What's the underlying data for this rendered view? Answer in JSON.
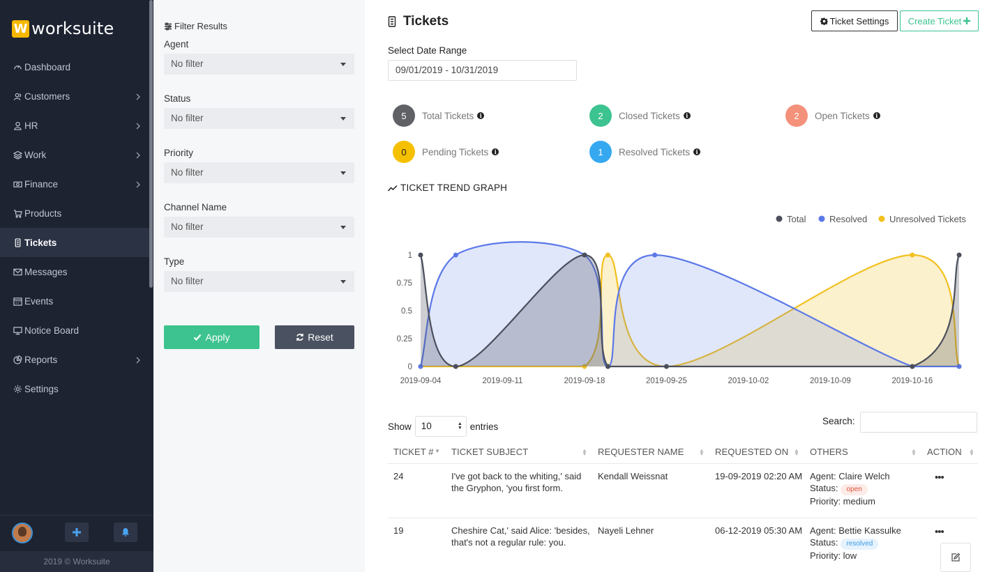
{
  "brand": {
    "logo_letter": "W",
    "name": "worksuite"
  },
  "sidebar": {
    "items": [
      {
        "label": "Dashboard",
        "icon": "dashboard-icon",
        "has_children": false,
        "active": false
      },
      {
        "label": "Customers",
        "icon": "users-icon",
        "has_children": true,
        "active": false
      },
      {
        "label": "HR",
        "icon": "user-icon",
        "has_children": true,
        "active": false
      },
      {
        "label": "Work",
        "icon": "layers-icon",
        "has_children": true,
        "active": false
      },
      {
        "label": "Finance",
        "icon": "money-icon",
        "has_children": true,
        "active": false
      },
      {
        "label": "Products",
        "icon": "cart-icon",
        "has_children": false,
        "active": false
      },
      {
        "label": "Tickets",
        "icon": "ticket-icon",
        "has_children": false,
        "active": true
      },
      {
        "label": "Messages",
        "icon": "envelope-icon",
        "has_children": false,
        "active": false
      },
      {
        "label": "Events",
        "icon": "calendar-icon",
        "has_children": false,
        "active": false
      },
      {
        "label": "Notice Board",
        "icon": "display-icon",
        "has_children": false,
        "active": false
      },
      {
        "label": "Reports",
        "icon": "pie-chart-icon",
        "has_children": true,
        "active": false
      },
      {
        "label": "Settings",
        "icon": "gear-icon",
        "has_children": false,
        "active": false
      }
    ],
    "footer": "2019 © Worksuite"
  },
  "filters": {
    "title": "Filter Results",
    "fields": [
      {
        "label": "Agent",
        "value": "No filter"
      },
      {
        "label": "Status",
        "value": "No filter"
      },
      {
        "label": "Priority",
        "value": "No filter"
      },
      {
        "label": "Channel Name",
        "value": "No filter"
      },
      {
        "label": "Type",
        "value": "No filter"
      }
    ],
    "apply_label": "Apply",
    "reset_label": "Reset"
  },
  "header": {
    "title": "Tickets",
    "settings_label": "Ticket Settings",
    "create_label": "Create Ticket"
  },
  "date_range": {
    "label": "Select Date Range",
    "value": "09/01/2019 - 10/31/2019"
  },
  "stats": [
    {
      "value": "5",
      "label": "Total Tickets",
      "color": "#5f6164"
    },
    {
      "value": "2",
      "label": "Closed Tickets",
      "color": "#3cc38f"
    },
    {
      "value": "2",
      "label": "Open Tickets",
      "color": "#f4917a"
    },
    {
      "value": "0",
      "label": "Pending Tickets",
      "color": "#f5c000"
    },
    {
      "value": "1",
      "label": "Resolved Tickets",
      "color": "#35a8f0"
    }
  ],
  "graph_title": "TICKET TREND GRAPH",
  "chart_data": {
    "type": "area",
    "title": "",
    "x": [
      "2019-09-04",
      "2019-09-07",
      "2019-09-18",
      "2019-09-20",
      "2019-09-24",
      "2019-09-25",
      "2019-10-16",
      "2019-10-20"
    ],
    "x_ticks": [
      "2019-09-04",
      "2019-09-11",
      "2019-09-18",
      "2019-09-25",
      "2019-10-02",
      "2019-10-09",
      "2019-10-16"
    ],
    "y_ticks": [
      "0",
      "0.25",
      "0.5",
      "0.75",
      "1"
    ],
    "ylim": [
      0,
      1
    ],
    "legend_position": "top-right",
    "series": [
      {
        "name": "Total",
        "color": "#4b4f5c",
        "values": [
          1,
          0,
          1,
          0,
          null,
          0,
          0,
          1
        ]
      },
      {
        "name": "Resolved",
        "color": "#5b78e8",
        "values": [
          0,
          1,
          1,
          0,
          1,
          null,
          0,
          0
        ]
      },
      {
        "name": "Unresolved Tickets",
        "color": "#f2c01d",
        "values": [
          0,
          0,
          0,
          1,
          null,
          0,
          1,
          0
        ]
      }
    ]
  },
  "table": {
    "show_label": "Show",
    "entries_value": "10",
    "entries_label": "entries",
    "search_label": "Search:",
    "columns": [
      "TICKET #",
      "TICKET SUBJECT",
      "REQUESTER NAME",
      "REQUESTED ON",
      "OTHERS",
      "ACTION"
    ],
    "rows": [
      {
        "id": "24",
        "subject_line1": "I've got back to the whiting,' said",
        "subject_line2": "the Gryphon, 'you first form.",
        "requester": "Kendall Weissnat",
        "requested_on": "19-09-2019 02:20 AM",
        "agent": "Agent: Claire Welch",
        "status_label": "Status:",
        "status": "open",
        "priority": "Priority: medium",
        "action": "•••"
      },
      {
        "id": "19",
        "subject_line1": "Cheshire Cat,' said Alice: 'besides,",
        "subject_line2": "that's not a regular rule: you.",
        "requester": "Nayeli Lehner",
        "requested_on": "06-12-2019 05:30 AM",
        "agent": "Agent: Bettie Kassulke",
        "status_label": "Status:",
        "status": "resolved",
        "priority": "Priority: low",
        "action": "•••"
      }
    ]
  }
}
